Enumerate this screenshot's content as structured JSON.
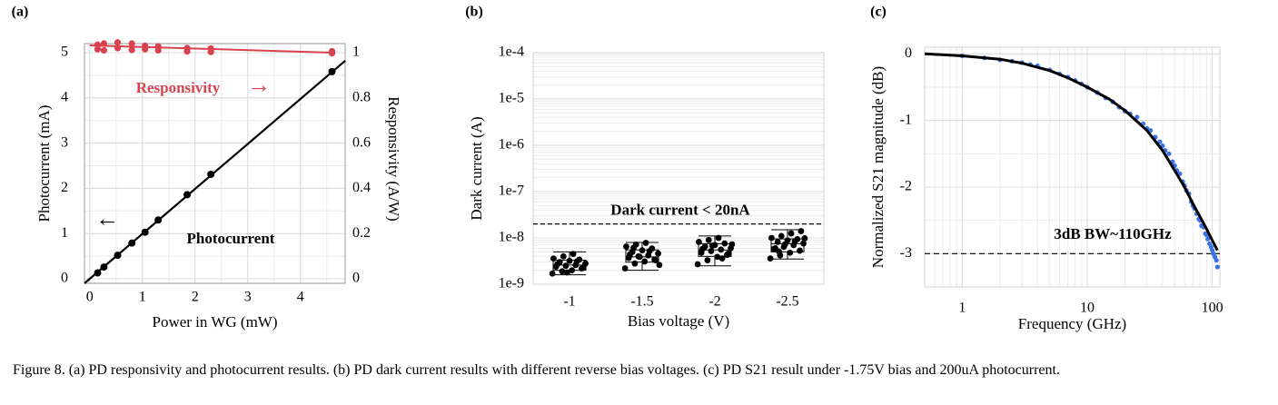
{
  "figure": {
    "caption": "Figure 8. (a) PD responsivity and photocurrent results. (b) PD dark current results with different reverse bias voltages. (c) PD S21 result under -1.75V bias and 200uA photocurrent."
  },
  "colors": {
    "responsivity": "#d9434f",
    "photocurrent": "#000000",
    "s21_measured": "#3b72e6",
    "grid": "#dcdcdc",
    "frame": "#9a9a9a"
  },
  "chart_data": [
    {
      "panel_label": "(a)",
      "type": "scatter",
      "xlabel": "Power in WG (mW)",
      "ylabel": "Photocurrent (mA)",
      "y2label": "Responsivity (A/W)",
      "xlim": [
        -0.1,
        4.85
      ],
      "ylim": [
        -0.1,
        5.2
      ],
      "y2lim": [
        -0.02,
        1.04
      ],
      "xticks": [
        "0",
        "1",
        "2",
        "3",
        "4"
      ],
      "yticks": [
        "0",
        "1",
        "2",
        "3",
        "4",
        "5"
      ],
      "y2ticks": [
        "0",
        "0.2",
        "0.4",
        "0.6",
        "0.8",
        "1"
      ],
      "grid": true,
      "annotations": {
        "responsivity": "Responsivity",
        "photocurrent": "Photocurrent",
        "arrow_right": "→",
        "arrow_left": "←"
      },
      "series": [
        {
          "axis": "left",
          "x": [
            0.15,
            0.27,
            0.53,
            0.8,
            1.05,
            1.3,
            1.85,
            2.3,
            4.6
          ],
          "y": [
            0.13,
            0.26,
            0.52,
            0.79,
            1.03,
            1.3,
            1.86,
            2.31,
            4.58
          ],
          "fit": {
            "x": [
              -0.1,
              4.85
            ],
            "y": [
              -0.1,
              4.82
            ]
          }
        },
        {
          "axis": "right",
          "x": [
            0.15,
            0.15,
            0.27,
            0.27,
            0.53,
            0.53,
            0.8,
            0.8,
            1.05,
            1.05,
            1.3,
            1.3,
            1.85,
            1.85,
            2.3,
            2.3,
            4.6,
            4.6
          ],
          "y": [
            1.035,
            1.015,
            1.04,
            1.01,
            1.045,
            1.02,
            1.04,
            1.012,
            1.03,
            1.015,
            1.028,
            1.01,
            1.02,
            1.005,
            1.018,
            1.003,
            1.006,
            0.997
          ],
          "fit": {
            "x": [
              0.0,
              4.6
            ],
            "y": [
              1.032,
              1.0
            ]
          }
        }
      ]
    },
    {
      "panel_label": "(b)",
      "type": "box",
      "xlabel": "Bias voltage (V)",
      "ylabel": "Dark current (A)",
      "categories": [
        "-1",
        "-1.5",
        "-2",
        "-2.5"
      ],
      "yscale": "log",
      "ylim": [
        1e-09,
        0.0001
      ],
      "yticks": [
        "1e-9",
        "1e-8",
        "1e-7",
        "1e-6",
        "1e-5",
        "1e-4"
      ],
      "grid": true,
      "threshold": {
        "value": 2e-08,
        "label": "Dark current < 20nA"
      },
      "boxes": [
        {
          "min": 1.6e-09,
          "q1": 2e-09,
          "median": 2.6e-09,
          "q3": 3.3e-09,
          "max": 5e-09
        },
        {
          "min": 2e-09,
          "q1": 3e-09,
          "median": 3.9e-09,
          "q3": 5.5e-09,
          "max": 8e-09
        },
        {
          "min": 2.5e-09,
          "q1": 4e-09,
          "median": 5.5e-09,
          "q3": 7.5e-09,
          "max": 1.1e-08
        },
        {
          "min": 3.5e-09,
          "q1": 5e-09,
          "median": 7.5e-09,
          "q3": 9.5e-09,
          "max": 1.5e-08
        }
      ],
      "points": [
        [
          1.7e-09,
          1.9e-09,
          2e-09,
          2.2e-09,
          2.4e-09,
          2.5e-09,
          2.6e-09,
          2.8e-09,
          3e-09,
          3.2e-09,
          3.4e-09,
          3.6e-09,
          4e-09,
          4.5e-09,
          2.3e-09,
          2.7e-09,
          1.8e-09,
          3.1e-09
        ],
        [
          2.2e-09,
          2.8e-09,
          3.1e-09,
          3.4e-09,
          3.7e-09,
          4e-09,
          4.2e-09,
          4.6e-09,
          5e-09,
          5.4e-09,
          5.9e-09,
          6.5e-09,
          7.2e-09,
          7.8e-09,
          3.3e-09,
          4.4e-09,
          3.9e-09,
          5.2e-09,
          2.6e-09,
          6.1e-09
        ],
        [
          2.7e-09,
          3.3e-09,
          3.9e-09,
          4.3e-09,
          4.8e-09,
          5.2e-09,
          5.6e-09,
          6e-09,
          6.5e-09,
          7e-09,
          7.6e-09,
          8.2e-09,
          9e-09,
          1e-08,
          4.6e-09,
          5.8e-09,
          6.8e-09,
          3.6e-09,
          7.3e-09
        ],
        [
          3.6e-09,
          4.2e-09,
          4.8e-09,
          5.3e-09,
          5.8e-09,
          6.4e-09,
          7e-09,
          7.6e-09,
          8.2e-09,
          8.8e-09,
          9.4e-09,
          1e-08,
          1.1e-08,
          1.25e-08,
          1.4e-08,
          6e-09,
          7.3e-09,
          8.5e-09,
          9.8e-09,
          5.1e-09
        ]
      ]
    },
    {
      "panel_label": "(c)",
      "type": "line",
      "xlabel": "Frequency (GHz)",
      "ylabel": "Normalized S21 magnitude (dB)",
      "xscale": "log",
      "xlim": [
        0.5,
        115
      ],
      "ylim": [
        -3.5,
        0.1
      ],
      "xticks": [
        "1",
        "10",
        "100"
      ],
      "yticks": [
        "0",
        "-1",
        "-2",
        "-3"
      ],
      "grid": true,
      "threshold": {
        "value": -3,
        "label": "3dB BW~110GHz"
      },
      "fit_curve": {
        "x": [
          0.5,
          1,
          2,
          3,
          5,
          7,
          10,
          15,
          20,
          30,
          40,
          50,
          60,
          70,
          80,
          90,
          100,
          110
        ],
        "y": [
          0.0,
          -0.03,
          -0.08,
          -0.14,
          -0.25,
          -0.36,
          -0.5,
          -0.68,
          -0.85,
          -1.15,
          -1.45,
          -1.75,
          -2.0,
          -2.25,
          -2.45,
          -2.63,
          -2.8,
          -2.95
        ]
      },
      "measured": {
        "x": [
          1,
          1.5,
          2,
          2.5,
          3,
          3.5,
          4,
          5,
          6,
          7,
          8,
          9,
          10,
          12,
          14,
          16,
          18,
          20,
          22,
          25,
          28,
          30,
          32,
          35,
          38,
          40,
          42,
          45,
          48,
          50,
          52,
          55,
          58,
          60,
          62,
          65,
          68,
          70,
          72,
          75,
          78,
          80,
          82,
          85,
          88,
          90,
          92,
          95,
          98,
          100,
          102,
          105,
          108,
          110
        ],
        "y": [
          -0.03,
          -0.06,
          -0.09,
          -0.11,
          -0.13,
          -0.16,
          -0.18,
          -0.24,
          -0.3,
          -0.35,
          -0.4,
          -0.45,
          -0.5,
          -0.58,
          -0.66,
          -0.72,
          -0.8,
          -0.86,
          -0.9,
          -0.95,
          -1.05,
          -1.12,
          -1.15,
          -1.25,
          -1.32,
          -1.38,
          -1.45,
          -1.5,
          -1.62,
          -1.68,
          -1.75,
          -1.8,
          -1.92,
          -1.98,
          -2.05,
          -2.1,
          -2.22,
          -2.28,
          -2.32,
          -2.4,
          -2.48,
          -2.5,
          -2.58,
          -2.6,
          -2.7,
          -2.72,
          -2.78,
          -2.85,
          -2.9,
          -2.95,
          -3.0,
          -3.05,
          -3.1,
          -3.2
        ]
      }
    }
  ]
}
